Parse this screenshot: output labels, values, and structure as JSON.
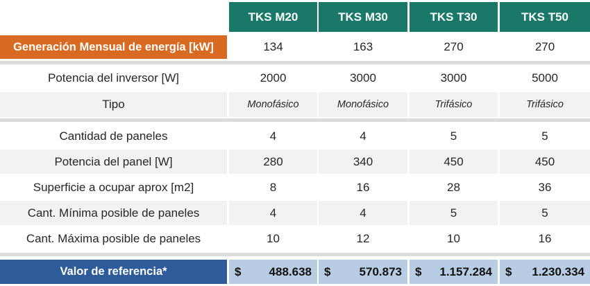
{
  "headers": [
    "TKS M20",
    "TKS M30",
    "TKS T30",
    "TKS T50"
  ],
  "generation": {
    "label": "Generación Mensual de energía [kW]",
    "values": [
      "134",
      "163",
      "270",
      "270"
    ]
  },
  "inverter_rows": [
    {
      "label": "Potencia del inversor [W]",
      "values": [
        "2000",
        "3000",
        "3000",
        "5000"
      ],
      "italic": false
    },
    {
      "label": "Tipo",
      "values": [
        "Monofásico",
        "Monofásico",
        "Trifásico",
        "Trifásico"
      ],
      "italic": true
    }
  ],
  "panel_rows": [
    {
      "label": "Cantidad de paneles",
      "values": [
        "4",
        "4",
        "5",
        "5"
      ]
    },
    {
      "label": "Potencia del panel [W]",
      "values": [
        "280",
        "340",
        "450",
        "450"
      ]
    },
    {
      "label": "Superficie a ocupar aprox [m2]",
      "values": [
        "8",
        "16",
        "28",
        "36"
      ]
    },
    {
      "label": "Cant. Mínima posible de paneles",
      "values": [
        "4",
        "4",
        "5",
        "5"
      ]
    },
    {
      "label": "Cant. Máxima posible de paneles",
      "values": [
        "10",
        "12",
        "10",
        "16"
      ]
    }
  ],
  "reference": {
    "label": "Valor de referencia*",
    "currency": "$",
    "values": [
      "488.638",
      "570.873",
      "1.157.284",
      "1.230.334"
    ]
  },
  "colors": {
    "header": "#1a7868",
    "generation_label": "#d86a22",
    "reference_label": "#2e5b9a",
    "reference_values": "#b8cce4"
  }
}
